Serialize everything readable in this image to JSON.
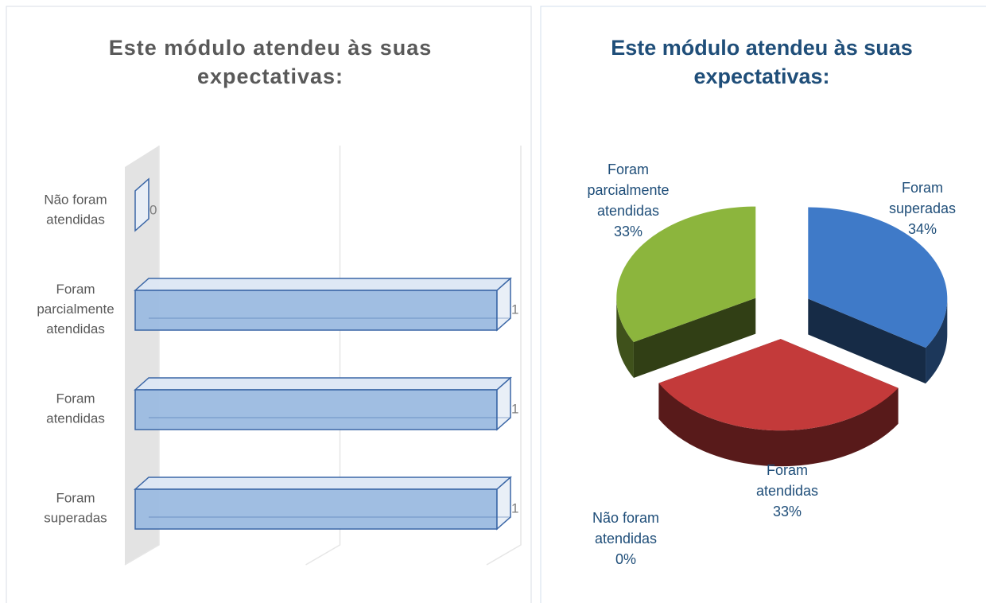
{
  "chart_data": [
    {
      "type": "bar3d",
      "title": "Este módulo atendeu às suas expectativas:",
      "categories": [
        "Foram superadas",
        "Foram atendidas",
        "Foram parcialmente atendidas",
        "Não foram atendidas"
      ],
      "values": [
        1,
        1,
        1,
        0
      ],
      "color": "#9bbbe0",
      "xlim": [
        0,
        1
      ],
      "xgrid": [
        0,
        0.5,
        1
      ]
    },
    {
      "type": "pie3d",
      "title": "Este módulo atendeu às suas expectativas:",
      "categories": [
        "Foram superadas",
        "Foram atendidas",
        "Foram parcialmente atendidas",
        "Não foram atendidas"
      ],
      "values": [
        34,
        33,
        33,
        0
      ],
      "value_labels": [
        "34%",
        "33%",
        "33%",
        "0%"
      ],
      "colors": [
        "#3f7ac8",
        "#c33a3a",
        "#8cb53d",
        "#7f5fa8"
      ]
    }
  ]
}
